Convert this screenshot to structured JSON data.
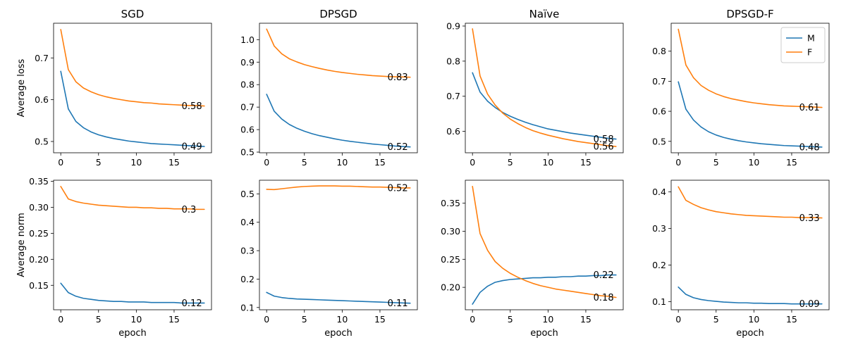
{
  "chart_data": [
    {
      "type": "line",
      "title": "SGD",
      "xlabel": "",
      "ylabel": "Average loss",
      "xlim": [
        -0.95,
        19.95
      ],
      "ylim": [
        0.473,
        0.783
      ],
      "xticks": [
        0,
        5,
        10,
        15
      ],
      "xtick_labels": [
        "0",
        "5",
        "10",
        "15"
      ],
      "yticks": [
        0.5,
        0.6,
        0.7
      ],
      "ytick_labels": [
        "0.5",
        "0.6",
        "0.7"
      ],
      "x": [
        0,
        1,
        2,
        3,
        4,
        5,
        6,
        7,
        8,
        9,
        10,
        11,
        12,
        13,
        14,
        15,
        16,
        17,
        18,
        19
      ],
      "series": [
        {
          "name": "M",
          "values": [
            0.668,
            0.578,
            0.548,
            0.533,
            0.523,
            0.516,
            0.511,
            0.507,
            0.504,
            0.501,
            0.499,
            0.497,
            0.495,
            0.494,
            0.493,
            0.492,
            0.491,
            0.49,
            0.489,
            0.488
          ],
          "end_label": "0.49"
        },
        {
          "name": "F",
          "values": [
            0.768,
            0.672,
            0.643,
            0.628,
            0.619,
            0.612,
            0.607,
            0.603,
            0.6,
            0.597,
            0.595,
            0.593,
            0.592,
            0.59,
            0.589,
            0.588,
            0.587,
            0.586,
            0.586,
            0.585
          ],
          "end_label": "0.58"
        }
      ]
    },
    {
      "type": "line",
      "title": "DPSGD",
      "xlabel": "",
      "ylabel": "",
      "xlim": [
        -0.95,
        19.95
      ],
      "ylim": [
        0.497,
        1.073
      ],
      "xticks": [
        0,
        5,
        10,
        15
      ],
      "xtick_labels": [
        "0",
        "5",
        "10",
        "15"
      ],
      "yticks": [
        0.5,
        0.6,
        0.7,
        0.8,
        0.9,
        1.0
      ],
      "ytick_labels": [
        "0.5",
        "0.6",
        "0.7",
        "0.8",
        "0.9",
        "1.0"
      ],
      "x": [
        0,
        1,
        2,
        3,
        4,
        5,
        6,
        7,
        8,
        9,
        10,
        11,
        12,
        13,
        14,
        15,
        16,
        17,
        18,
        19
      ],
      "series": [
        {
          "name": "M",
          "values": [
            0.757,
            0.682,
            0.647,
            0.623,
            0.606,
            0.593,
            0.582,
            0.573,
            0.566,
            0.559,
            0.553,
            0.548,
            0.544,
            0.54,
            0.536,
            0.533,
            0.53,
            0.527,
            0.525,
            0.523
          ],
          "end_label": "0.52"
        },
        {
          "name": "F",
          "values": [
            1.047,
            0.972,
            0.937,
            0.915,
            0.901,
            0.889,
            0.88,
            0.872,
            0.865,
            0.859,
            0.854,
            0.85,
            0.846,
            0.843,
            0.84,
            0.838,
            0.836,
            0.835,
            0.834,
            0.833
          ],
          "end_label": "0.83"
        }
      ]
    },
    {
      "type": "line",
      "title": "Naïve",
      "xlabel": "",
      "ylabel": "",
      "xlim": [
        -0.95,
        19.95
      ],
      "ylim": [
        0.539,
        0.908
      ],
      "xticks": [
        0,
        5,
        10,
        15
      ],
      "xtick_labels": [
        "0",
        "5",
        "10",
        "15"
      ],
      "yticks": [
        0.6,
        0.7,
        0.8,
        0.9
      ],
      "ytick_labels": [
        "0.6",
        "0.7",
        "0.8",
        "0.9"
      ],
      "x": [
        0,
        1,
        2,
        3,
        4,
        5,
        6,
        7,
        8,
        9,
        10,
        11,
        12,
        13,
        14,
        15,
        16,
        17,
        18,
        19
      ],
      "series": [
        {
          "name": "M",
          "values": [
            0.767,
            0.712,
            0.686,
            0.668,
            0.654,
            0.643,
            0.634,
            0.626,
            0.619,
            0.613,
            0.607,
            0.603,
            0.599,
            0.595,
            0.592,
            0.589,
            0.586,
            0.583,
            0.58,
            0.578
          ],
          "end_label": "0.58"
        },
        {
          "name": "F",
          "values": [
            0.892,
            0.758,
            0.706,
            0.675,
            0.652,
            0.635,
            0.622,
            0.611,
            0.602,
            0.595,
            0.589,
            0.584,
            0.579,
            0.575,
            0.571,
            0.568,
            0.565,
            0.562,
            0.559,
            0.557
          ],
          "end_label": "0.56"
        }
      ]
    },
    {
      "type": "line",
      "title": "DPSGD-F",
      "xlabel": "",
      "ylabel": "",
      "xlim": [
        -0.95,
        19.95
      ],
      "ylim": [
        0.462,
        0.893
      ],
      "xticks": [
        0,
        5,
        10,
        15
      ],
      "xtick_labels": [
        "0",
        "5",
        "10",
        "15"
      ],
      "yticks": [
        0.5,
        0.6,
        0.7,
        0.8
      ],
      "ytick_labels": [
        "0.5",
        "0.6",
        "0.7",
        "0.8"
      ],
      "legend": {
        "position": "top-right",
        "entries": [
          "M",
          "F"
        ]
      },
      "x": [
        0,
        1,
        2,
        3,
        4,
        5,
        6,
        7,
        8,
        9,
        10,
        11,
        12,
        13,
        14,
        15,
        16,
        17,
        18,
        19
      ],
      "series": [
        {
          "name": "M",
          "values": [
            0.698,
            0.607,
            0.571,
            0.548,
            0.532,
            0.521,
            0.513,
            0.507,
            0.502,
            0.498,
            0.495,
            0.492,
            0.49,
            0.488,
            0.486,
            0.485,
            0.484,
            0.483,
            0.482,
            0.481
          ],
          "end_label": "0.48"
        },
        {
          "name": "F",
          "values": [
            0.873,
            0.754,
            0.712,
            0.686,
            0.67,
            0.658,
            0.649,
            0.642,
            0.637,
            0.632,
            0.628,
            0.625,
            0.622,
            0.62,
            0.618,
            0.617,
            0.616,
            0.615,
            0.614,
            0.613
          ],
          "end_label": "0.61"
        }
      ]
    },
    {
      "type": "line",
      "title": "",
      "xlabel": "epoch",
      "ylabel": "Average norm",
      "xlim": [
        -0.95,
        19.95
      ],
      "ylim": [
        0.103,
        0.352
      ],
      "xticks": [
        0,
        5,
        10,
        15
      ],
      "xtick_labels": [
        "0",
        "5",
        "10",
        "15"
      ],
      "yticks": [
        0.15,
        0.2,
        0.25,
        0.3,
        0.35
      ],
      "ytick_labels": [
        "0.15",
        "0.20",
        "0.25",
        "0.30",
        "0.35"
      ],
      "x": [
        0,
        1,
        2,
        3,
        4,
        5,
        6,
        7,
        8,
        9,
        10,
        11,
        12,
        13,
        14,
        15,
        16,
        17,
        18,
        19
      ],
      "series": [
        {
          "name": "M",
          "values": [
            0.154,
            0.136,
            0.129,
            0.125,
            0.123,
            0.121,
            0.12,
            0.119,
            0.119,
            0.118,
            0.118,
            0.118,
            0.117,
            0.117,
            0.117,
            0.117,
            0.116,
            0.116,
            0.116,
            0.116
          ],
          "end_label": "0.12"
        },
        {
          "name": "F",
          "values": [
            0.34,
            0.316,
            0.311,
            0.308,
            0.306,
            0.304,
            0.303,
            0.302,
            0.301,
            0.3,
            0.3,
            0.299,
            0.299,
            0.298,
            0.298,
            0.297,
            0.297,
            0.297,
            0.296,
            0.296
          ],
          "end_label": "0.3"
        }
      ]
    },
    {
      "type": "line",
      "title": "",
      "xlabel": "epoch",
      "ylabel": "",
      "xlim": [
        -0.95,
        19.95
      ],
      "ylim": [
        0.092,
        0.548
      ],
      "xticks": [
        0,
        5,
        10,
        15
      ],
      "xtick_labels": [
        "0",
        "5",
        "10",
        "15"
      ],
      "yticks": [
        0.1,
        0.2,
        0.3,
        0.4,
        0.5
      ],
      "ytick_labels": [
        "0.1",
        "0.2",
        "0.3",
        "0.4",
        "0.5"
      ],
      "x": [
        0,
        1,
        2,
        3,
        4,
        5,
        6,
        7,
        8,
        9,
        10,
        11,
        12,
        13,
        14,
        15,
        16,
        17,
        18,
        19
      ],
      "series": [
        {
          "name": "M",
          "values": [
            0.153,
            0.14,
            0.135,
            0.132,
            0.13,
            0.129,
            0.128,
            0.127,
            0.126,
            0.125,
            0.124,
            0.123,
            0.122,
            0.121,
            0.12,
            0.119,
            0.118,
            0.117,
            0.116,
            0.115
          ],
          "end_label": "0.11"
        },
        {
          "name": "F",
          "values": [
            0.516,
            0.515,
            0.518,
            0.521,
            0.524,
            0.526,
            0.527,
            0.528,
            0.528,
            0.528,
            0.527,
            0.527,
            0.526,
            0.525,
            0.524,
            0.524,
            0.523,
            0.522,
            0.521,
            0.521
          ],
          "end_label": "0.52"
        }
      ]
    },
    {
      "type": "line",
      "title": "",
      "xlabel": "epoch",
      "ylabel": "",
      "xlim": [
        -0.95,
        19.95
      ],
      "ylim": [
        0.16,
        0.391
      ],
      "xticks": [
        0,
        5,
        10,
        15
      ],
      "xtick_labels": [
        "0",
        "5",
        "10",
        "15"
      ],
      "yticks": [
        0.2,
        0.25,
        0.3,
        0.35
      ],
      "ytick_labels": [
        "0.20",
        "0.25",
        "0.30",
        "0.35"
      ],
      "x": [
        0,
        1,
        2,
        3,
        4,
        5,
        6,
        7,
        8,
        9,
        10,
        11,
        12,
        13,
        14,
        15,
        16,
        17,
        18,
        19
      ],
      "series": [
        {
          "name": "M",
          "values": [
            0.17,
            0.191,
            0.202,
            0.209,
            0.212,
            0.214,
            0.215,
            0.216,
            0.217,
            0.217,
            0.218,
            0.218,
            0.219,
            0.219,
            0.22,
            0.22,
            0.221,
            0.221,
            0.222,
            0.222
          ],
          "end_label": "0.22"
        },
        {
          "name": "F",
          "values": [
            0.38,
            0.296,
            0.266,
            0.246,
            0.234,
            0.225,
            0.218,
            0.212,
            0.207,
            0.203,
            0.2,
            0.197,
            0.195,
            0.193,
            0.191,
            0.189,
            0.187,
            0.185,
            0.184,
            0.182
          ],
          "end_label": "0.18"
        }
      ]
    },
    {
      "type": "line",
      "title": "",
      "xlabel": "epoch",
      "ylabel": "",
      "xlim": [
        -0.95,
        19.95
      ],
      "ylim": [
        0.078,
        0.432
      ],
      "xticks": [
        0,
        5,
        10,
        15
      ],
      "xtick_labels": [
        "0",
        "5",
        "10",
        "15"
      ],
      "yticks": [
        0.1,
        0.2,
        0.3,
        0.4
      ],
      "ytick_labels": [
        "0.1",
        "0.2",
        "0.3",
        "0.4"
      ],
      "x": [
        0,
        1,
        2,
        3,
        4,
        5,
        6,
        7,
        8,
        9,
        10,
        11,
        12,
        13,
        14,
        15,
        16,
        17,
        18,
        19
      ],
      "series": [
        {
          "name": "M",
          "values": [
            0.14,
            0.12,
            0.111,
            0.106,
            0.103,
            0.101,
            0.099,
            0.098,
            0.097,
            0.097,
            0.096,
            0.096,
            0.095,
            0.095,
            0.095,
            0.094,
            0.094,
            0.094,
            0.094,
            0.094
          ],
          "end_label": "0.09"
        },
        {
          "name": "F",
          "values": [
            0.414,
            0.377,
            0.366,
            0.357,
            0.351,
            0.346,
            0.343,
            0.34,
            0.338,
            0.336,
            0.335,
            0.334,
            0.333,
            0.332,
            0.331,
            0.331,
            0.33,
            0.33,
            0.33,
            0.329
          ],
          "end_label": "0.33"
        }
      ]
    }
  ],
  "colors": {
    "M": "#1f77b4",
    "F": "#ff7f0e"
  }
}
